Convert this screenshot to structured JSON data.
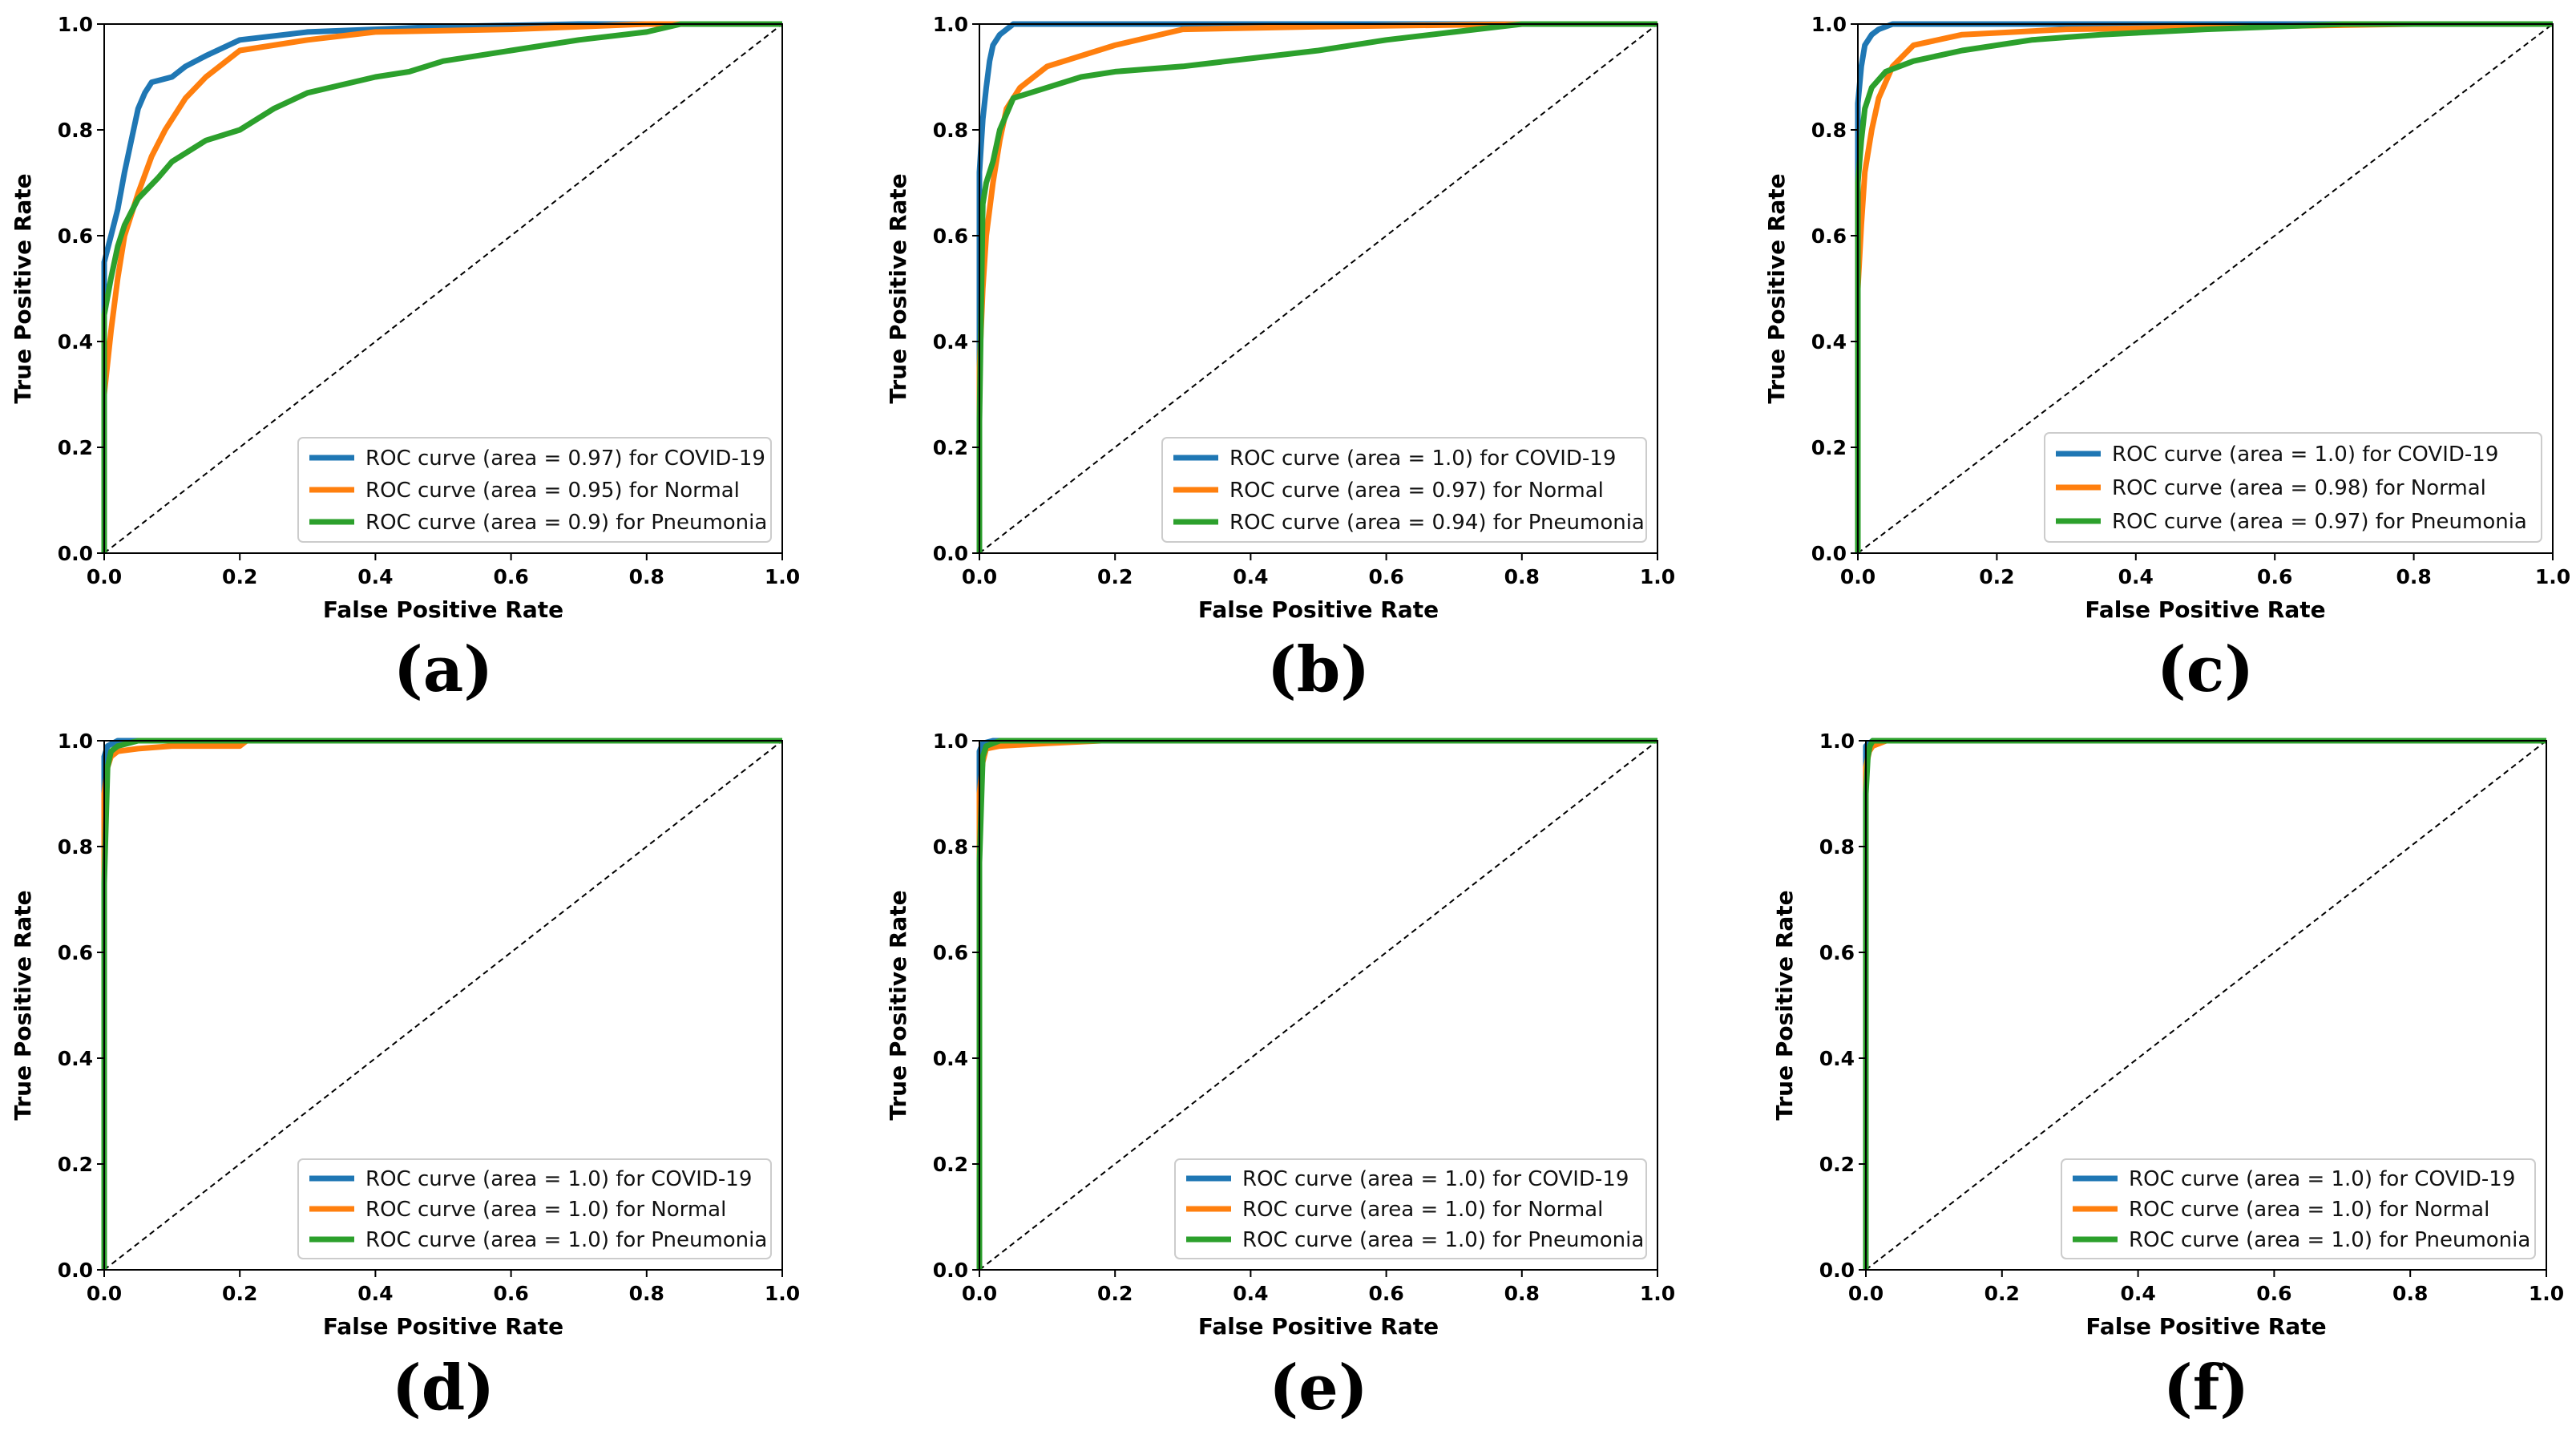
{
  "colors": {
    "covid": "#1f77b4",
    "normal": "#ff7f0e",
    "pneumonia": "#2ca02c",
    "diagonal": "#000000"
  },
  "chart_data": [
    {
      "type": "line",
      "panel": "(a)",
      "xlabel": "False Positive Rate",
      "ylabel": "True Positive Rate",
      "xlim": [
        0,
        1
      ],
      "ylim": [
        0,
        1
      ],
      "xticks": [
        "0.0",
        "0.2",
        "0.4",
        "0.6",
        "0.8",
        "1.0"
      ],
      "yticks": [
        "0.0",
        "0.2",
        "0.4",
        "0.6",
        "0.8",
        "1.0"
      ],
      "legend_position": "lower-right",
      "series": [
        {
          "name": "ROC curve (area = 0.97) for COVID-19",
          "color_key": "covid",
          "x": [
            0,
            0,
            0.01,
            0.02,
            0.03,
            0.04,
            0.05,
            0.06,
            0.07,
            0.1,
            0.12,
            0.15,
            0.2,
            0.3,
            0.5,
            0.7,
            1.0
          ],
          "y": [
            0,
            0.55,
            0.6,
            0.65,
            0.72,
            0.78,
            0.84,
            0.87,
            0.89,
            0.9,
            0.92,
            0.94,
            0.97,
            0.985,
            0.995,
            1.0,
            1.0
          ]
        },
        {
          "name": "ROC curve (area = 0.95) for Normal",
          "color_key": "normal",
          "x": [
            0,
            0,
            0.01,
            0.02,
            0.03,
            0.05,
            0.07,
            0.09,
            0.12,
            0.15,
            0.2,
            0.3,
            0.4,
            0.6,
            0.8,
            1.0
          ],
          "y": [
            0,
            0.3,
            0.42,
            0.52,
            0.6,
            0.68,
            0.75,
            0.8,
            0.86,
            0.9,
            0.95,
            0.97,
            0.985,
            0.99,
            1.0,
            1.0
          ]
        },
        {
          "name": "ROC curve (area = 0.9) for Pneumonia",
          "color_key": "pneumonia",
          "x": [
            0,
            0,
            0.01,
            0.02,
            0.03,
            0.05,
            0.08,
            0.1,
            0.15,
            0.2,
            0.25,
            0.3,
            0.4,
            0.45,
            0.5,
            0.6,
            0.7,
            0.8,
            0.85,
            1.0
          ],
          "y": [
            0,
            0.45,
            0.52,
            0.58,
            0.62,
            0.67,
            0.71,
            0.74,
            0.78,
            0.8,
            0.84,
            0.87,
            0.9,
            0.91,
            0.93,
            0.95,
            0.97,
            0.985,
            1.0,
            1.0
          ]
        }
      ]
    },
    {
      "type": "line",
      "panel": "(b)",
      "xlabel": "False Positive Rate",
      "ylabel": "True Positive Rate",
      "xlim": [
        0,
        1
      ],
      "ylim": [
        0,
        1
      ],
      "xticks": [
        "0.0",
        "0.2",
        "0.4",
        "0.6",
        "0.8",
        "1.0"
      ],
      "yticks": [
        "0.0",
        "0.2",
        "0.4",
        "0.6",
        "0.8",
        "1.0"
      ],
      "legend_position": "lower-right",
      "series": [
        {
          "name": "ROC curve (area = 1.0) for COVID-19",
          "color_key": "covid",
          "x": [
            0,
            0,
            0.005,
            0.01,
            0.015,
            0.02,
            0.03,
            0.05,
            0.3,
            0.8,
            1.0
          ],
          "y": [
            0,
            0.72,
            0.82,
            0.88,
            0.93,
            0.96,
            0.98,
            1.0,
            1.0,
            1.0,
            1.0
          ]
        },
        {
          "name": "ROC curve (area = 0.97) for Normal",
          "color_key": "normal",
          "x": [
            0,
            0,
            0.005,
            0.01,
            0.02,
            0.03,
            0.04,
            0.06,
            0.1,
            0.2,
            0.3,
            0.5,
            0.8,
            1.0
          ],
          "y": [
            0,
            0.35,
            0.5,
            0.6,
            0.7,
            0.78,
            0.84,
            0.88,
            0.92,
            0.96,
            0.99,
            0.995,
            1.0,
            1.0
          ]
        },
        {
          "name": "ROC curve (area = 0.94) for Pneumonia",
          "color_key": "pneumonia",
          "x": [
            0,
            0,
            0.005,
            0.01,
            0.02,
            0.03,
            0.05,
            0.1,
            0.15,
            0.2,
            0.3,
            0.4,
            0.5,
            0.6,
            0.7,
            0.8,
            1.0
          ],
          "y": [
            0,
            0.25,
            0.66,
            0.7,
            0.74,
            0.8,
            0.86,
            0.88,
            0.9,
            0.91,
            0.92,
            0.935,
            0.95,
            0.97,
            0.985,
            1.0,
            1.0
          ]
        }
      ]
    },
    {
      "type": "line",
      "panel": "(c)",
      "xlabel": "False Positive Rate",
      "ylabel": "True Positive Rate",
      "xlim": [
        0,
        1
      ],
      "ylim": [
        0,
        1
      ],
      "xticks": [
        "0.0",
        "0.2",
        "0.4",
        "0.6",
        "0.8",
        "1.0"
      ],
      "yticks": [
        "0.0",
        "0.2",
        "0.4",
        "0.6",
        "0.8",
        "1.0"
      ],
      "legend_position": "lower-right",
      "series": [
        {
          "name": "ROC curve (area = 1.0) for COVID-19",
          "color_key": "covid",
          "x": [
            0,
            0,
            0.005,
            0.01,
            0.02,
            0.03,
            0.05,
            0.35,
            1.0
          ],
          "y": [
            0,
            0.85,
            0.92,
            0.96,
            0.98,
            0.99,
            1.0,
            1.0,
            1.0
          ]
        },
        {
          "name": "ROC curve (area = 0.98) for Normal",
          "color_key": "normal",
          "x": [
            0,
            0,
            0.005,
            0.01,
            0.02,
            0.03,
            0.05,
            0.08,
            0.15,
            0.3,
            0.8,
            1.0
          ],
          "y": [
            0,
            0.5,
            0.62,
            0.72,
            0.8,
            0.86,
            0.92,
            0.96,
            0.98,
            0.99,
            1.0,
            1.0
          ]
        },
        {
          "name": "ROC curve (area = 0.97) for Pneumonia",
          "color_key": "pneumonia",
          "x": [
            0,
            0,
            0.005,
            0.01,
            0.02,
            0.04,
            0.08,
            0.15,
            0.25,
            0.35,
            0.5,
            0.7,
            1.0
          ],
          "y": [
            0,
            0.7,
            0.78,
            0.84,
            0.88,
            0.91,
            0.93,
            0.95,
            0.97,
            0.98,
            0.99,
            1.0,
            1.0
          ]
        }
      ]
    },
    {
      "type": "line",
      "panel": "(d)",
      "xlabel": "False Positive Rate",
      "ylabel": "True Positive Rate",
      "xlim": [
        0,
        1
      ],
      "ylim": [
        0,
        1
      ],
      "xticks": [
        "0.0",
        "0.2",
        "0.4",
        "0.6",
        "0.8",
        "1.0"
      ],
      "yticks": [
        "0.0",
        "0.2",
        "0.4",
        "0.6",
        "0.8",
        "1.0"
      ],
      "legend_position": "lower-right",
      "series": [
        {
          "name": "ROC curve (area = 1.0) for COVID-19",
          "color_key": "covid",
          "x": [
            0,
            0,
            0.005,
            0.02,
            1.0
          ],
          "y": [
            0,
            0.97,
            0.99,
            1.0,
            1.0
          ]
        },
        {
          "name": "ROC curve (area = 1.0) for Normal",
          "color_key": "normal",
          "x": [
            0,
            0,
            0.005,
            0.01,
            0.02,
            0.05,
            0.1,
            0.2,
            0.21,
            1.0
          ],
          "y": [
            0,
            0.9,
            0.95,
            0.97,
            0.98,
            0.985,
            0.99,
            0.99,
            1.0,
            1.0
          ]
        },
        {
          "name": "ROC curve (area = 1.0) for Pneumonia",
          "color_key": "pneumonia",
          "x": [
            0,
            0,
            0.005,
            0.01,
            0.02,
            0.05,
            1.0
          ],
          "y": [
            0,
            0.73,
            0.95,
            0.98,
            0.99,
            1.0,
            1.0
          ]
        }
      ]
    },
    {
      "type": "line",
      "panel": "(e)",
      "xlabel": "False Positive Rate",
      "ylabel": "True Positive Rate",
      "xlim": [
        0,
        1
      ],
      "ylim": [
        0,
        1
      ],
      "xticks": [
        "0.0",
        "0.2",
        "0.4",
        "0.6",
        "0.8",
        "1.0"
      ],
      "yticks": [
        "0.0",
        "0.2",
        "0.4",
        "0.6",
        "0.8",
        "1.0"
      ],
      "legend_position": "lower-right",
      "series": [
        {
          "name": "ROC curve (area = 1.0) for COVID-19",
          "color_key": "covid",
          "x": [
            0,
            0,
            0.005,
            0.02,
            1.0
          ],
          "y": [
            0,
            0.98,
            0.995,
            1.0,
            1.0
          ]
        },
        {
          "name": "ROC curve (area = 1.0) for Normal",
          "color_key": "normal",
          "x": [
            0,
            0,
            0.005,
            0.01,
            0.03,
            0.1,
            0.18,
            1.0
          ],
          "y": [
            0,
            0.9,
            0.96,
            0.985,
            0.99,
            0.995,
            1.0,
            1.0
          ]
        },
        {
          "name": "ROC curve (area = 1.0) for Pneumonia",
          "color_key": "pneumonia",
          "x": [
            0,
            0,
            0.005,
            0.01,
            0.03,
            1.0
          ],
          "y": [
            0,
            0.77,
            0.97,
            0.99,
            1.0,
            1.0
          ]
        }
      ]
    },
    {
      "type": "line",
      "panel": "(f)",
      "xlabel": "False Positive Rate",
      "ylabel": "True Positive Rate",
      "xlim": [
        0,
        1
      ],
      "ylim": [
        0,
        1
      ],
      "xticks": [
        "0.0",
        "0.2",
        "0.4",
        "0.6",
        "0.8",
        "1.0"
      ],
      "yticks": [
        "0.0",
        "0.2",
        "0.4",
        "0.6",
        "0.8",
        "1.0"
      ],
      "legend_position": "lower-right",
      "series": [
        {
          "name": "ROC curve (area = 1.0) for COVID-19",
          "color_key": "covid",
          "x": [
            0,
            0,
            0.005,
            0.01,
            1.0
          ],
          "y": [
            0,
            0.99,
            0.995,
            1.0,
            1.0
          ]
        },
        {
          "name": "ROC curve (area = 1.0) for Normal",
          "color_key": "normal",
          "x": [
            0,
            0,
            0.005,
            0.01,
            0.03,
            1.0
          ],
          "y": [
            0,
            0.95,
            0.98,
            0.99,
            1.0,
            1.0
          ]
        },
        {
          "name": "ROC curve (area = 1.0) for Pneumonia",
          "color_key": "pneumonia",
          "x": [
            0,
            0,
            0.003,
            0.006,
            0.01,
            1.0
          ],
          "y": [
            0,
            0.9,
            0.97,
            0.99,
            1.0,
            1.0
          ]
        }
      ]
    }
  ]
}
